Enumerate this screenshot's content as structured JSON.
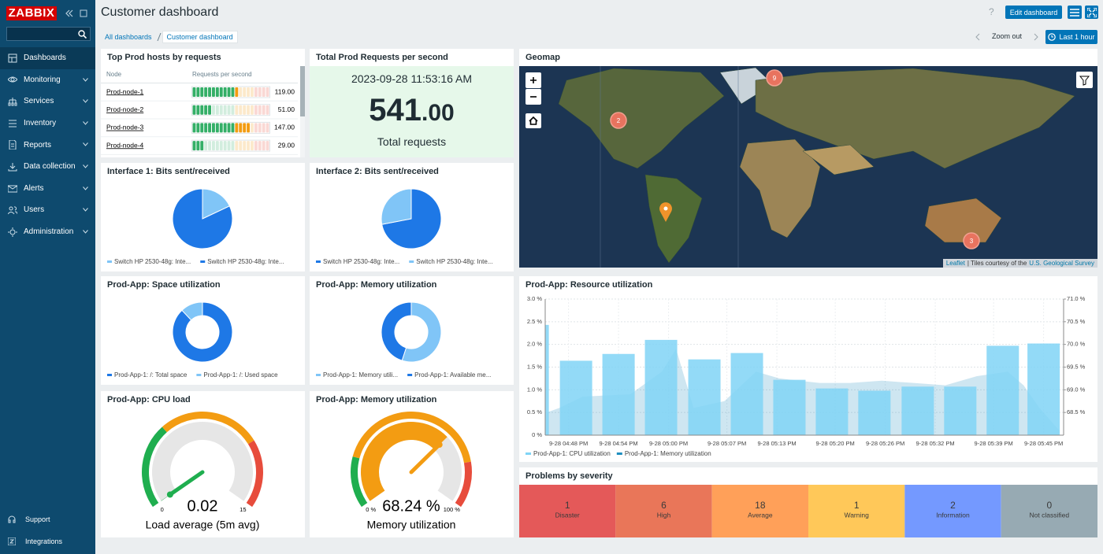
{
  "sidebar": {
    "logo": "ZABBIX",
    "menu": [
      "Dashboards",
      "Monitoring",
      "Services",
      "Inventory",
      "Reports",
      "Data collection",
      "Alerts",
      "Users",
      "Administration"
    ],
    "footer": [
      "Support",
      "Integrations"
    ]
  },
  "header": {
    "title": "Customer dashboard",
    "help": "?",
    "edit": "Edit dashboard",
    "breadcrumbs": [
      "All dashboards",
      "Customer dashboard"
    ],
    "zoom_out": "Zoom out",
    "period": "Last 1 hour"
  },
  "top_hosts": {
    "title": "Top Prod hosts by requests",
    "columns": [
      "Node",
      "Requests per second"
    ],
    "nodes": [
      "Prod-node-1",
      "Prod-node-2",
      "Prod-node-3",
      "Prod-node-4"
    ],
    "values": [
      119,
      51,
      147,
      29
    ],
    "value_labels": [
      "119.00",
      "51.00",
      "147.00",
      "29.00"
    ],
    "xlim": [
      0,
      200
    ],
    "thresholds": [
      110,
      160
    ],
    "colors": [
      "#34af67",
      "#f39c12",
      "#e74c3c"
    ]
  },
  "total_requests": {
    "title": "Total Prod Requests per second",
    "time": "2023-09-28 11:53:16 AM",
    "value": 541,
    "value_label": "541.00",
    "description": "Total requests"
  },
  "interface1": {
    "type": "pie",
    "title": "Interface 1: Bits sent/received",
    "series": [
      {
        "name": "Switch HP 2530-48g: Inte...",
        "color": "#80c5f7",
        "value": 18
      },
      {
        "name": "Switch HP 2530-48g: Inte...",
        "color": "#1e78e6",
        "value": 82
      }
    ]
  },
  "interface2": {
    "type": "pie",
    "title": "Interface 2: Bits sent/received",
    "series": [
      {
        "name": "Switch HP 2530-48g: Inte...",
        "color": "#1e78e6",
        "value": 72
      },
      {
        "name": "Switch HP 2530-48g: Inte...",
        "color": "#80c5f7",
        "value": 28
      }
    ]
  },
  "space": {
    "type": "donut",
    "title": "Prod-App: Space utilization",
    "series": [
      {
        "name": "Prod-App-1: /: Total space",
        "color": "#1e78e6",
        "value": 88
      },
      {
        "name": "Prod-App-1: /: Used space",
        "color": "#80c5f7",
        "value": 12
      }
    ]
  },
  "memory_pie": {
    "type": "donut",
    "title": "Prod-App: Memory utilization",
    "series": [
      {
        "name": "Prod-App-1: Memory utili...",
        "color": "#80c5f7",
        "value": 55
      },
      {
        "name": "Prod-App-1: Available me...",
        "color": "#1e78e6",
        "value": 45
      }
    ]
  },
  "cpu_gauge": {
    "type": "gauge",
    "title": "Prod-App: CPU load",
    "value": 0.02,
    "ylim": [
      0,
      15
    ],
    "yticks": [
      0,
      15
    ],
    "thresholds": [
      5,
      11
    ],
    "colors": [
      "#1fae4f",
      "#f39c12",
      "#e74c3c"
    ],
    "description": "Load average (5m avg)"
  },
  "memory_gauge": {
    "type": "gauge",
    "title": "Prod-App: Memory utilization",
    "value": 68.24,
    "value_label": "68.24 %",
    "ylim": [
      0,
      100
    ],
    "yticks": [
      {
        "value": 0,
        "label": "0 %"
      },
      {
        "value": 100,
        "label": "100 %"
      }
    ],
    "thresholds": [
      20,
      82
    ],
    "colors": [
      "#1fae4f",
      "#f39c12",
      "#e74c3c"
    ],
    "description": "Memory utilization"
  },
  "geomap": {
    "title": "Geomap",
    "clusters": [
      9,
      2,
      3
    ],
    "attribution": [
      "Leaflet",
      "| Tiles courtesy of the",
      "U.S. Geological Survey"
    ]
  },
  "resource": {
    "type": "bar",
    "title": "Prod-App: Resource utilization",
    "xlim": [
      -2.8,
      59.4
    ],
    "xticks": [
      {
        "value": 0,
        "label": "9-28 04:48 PM"
      },
      {
        "value": 6,
        "label": "9-28 04:54 PM"
      },
      {
        "value": 12,
        "label": "9-28 05:00 PM"
      },
      {
        "value": 19,
        "label": "9-28 05:07 PM"
      },
      {
        "value": 25,
        "label": "9-28 05:13 PM"
      },
      {
        "value": 32,
        "label": "9-28 05:20 PM"
      },
      {
        "value": 38,
        "label": "9-28 05:26 PM"
      },
      {
        "value": 44,
        "label": "9-28 05:32 PM"
      },
      {
        "value": 51,
        "label": "9-28 05:39 PM"
      },
      {
        "value": 57,
        "label": "9-28 05:45 PM"
      }
    ],
    "ylim": [
      0,
      3
    ],
    "yticks": [
      {
        "value": 0,
        "label": "0 %"
      },
      {
        "value": 0.5,
        "label": "0.5 %"
      },
      {
        "value": 1,
        "label": "1.0 %"
      },
      {
        "value": 1.5,
        "label": "1.5 %"
      },
      {
        "value": 2,
        "label": "2.0 %"
      },
      {
        "value": 2.5,
        "label": "2.5 %"
      },
      {
        "value": 3,
        "label": "3.0 %"
      }
    ],
    "y2lim": [
      68,
      71
    ],
    "y2ticks": [
      {
        "value": 68.5,
        "label": "68.5 %"
      },
      {
        "value": 69,
        "label": "69.0 %"
      },
      {
        "value": 69.5,
        "label": "69.5 %"
      },
      {
        "value": 70,
        "label": "70.0 %"
      },
      {
        "value": 70.5,
        "label": "70.5 %"
      },
      {
        "value": 71,
        "label": "71.0 %"
      }
    ],
    "series": [
      {
        "name": "Prod-App-1: CPU utilization",
        "color": "#80d4f6",
        "x": [
          -4.3,
          0.9,
          6,
          11.1,
          16.3,
          21.4,
          26.5,
          31.6,
          36.7,
          41.9,
          47,
          52.1,
          57
        ],
        "values": [
          2.43,
          1.64,
          1.79,
          2.1,
          1.67,
          1.81,
          1.22,
          1.03,
          0.98,
          1.07,
          1.07,
          1.97,
          2.02
        ]
      },
      {
        "name": "Prod-App-1: Memory utilization",
        "color": "#1e8fc0",
        "axis": "y2",
        "x": [
          -2.6,
          -1.1,
          1.7,
          7.4,
          11.2,
          12.9,
          15,
          18.7,
          22.5,
          25.3,
          30.1,
          33.8,
          37.6,
          41.4,
          45.2,
          49,
          52.7,
          54.6,
          56.5,
          58.9
        ],
        "values": [
          68.5,
          68.6,
          68.85,
          68.9,
          69.4,
          69.9,
          68.6,
          68.75,
          69.4,
          69.25,
          69.15,
          69.15,
          69.2,
          69.15,
          69.1,
          69.3,
          69.4,
          69.1,
          68.6,
          68.1
        ]
      }
    ]
  },
  "problems": {
    "title": "Problems by severity",
    "severities": [
      {
        "name": "Disaster",
        "value": 1,
        "color": "#e45959"
      },
      {
        "name": "High",
        "value": 6,
        "color": "#e97659"
      },
      {
        "name": "Average",
        "value": 18,
        "color": "#ffa059"
      },
      {
        "name": "Warning",
        "value": 1,
        "color": "#ffc859"
      },
      {
        "name": "Information",
        "value": 2,
        "color": "#7499ff"
      },
      {
        "name": "Not classified",
        "value": 0,
        "color": "#97aab3"
      }
    ]
  }
}
